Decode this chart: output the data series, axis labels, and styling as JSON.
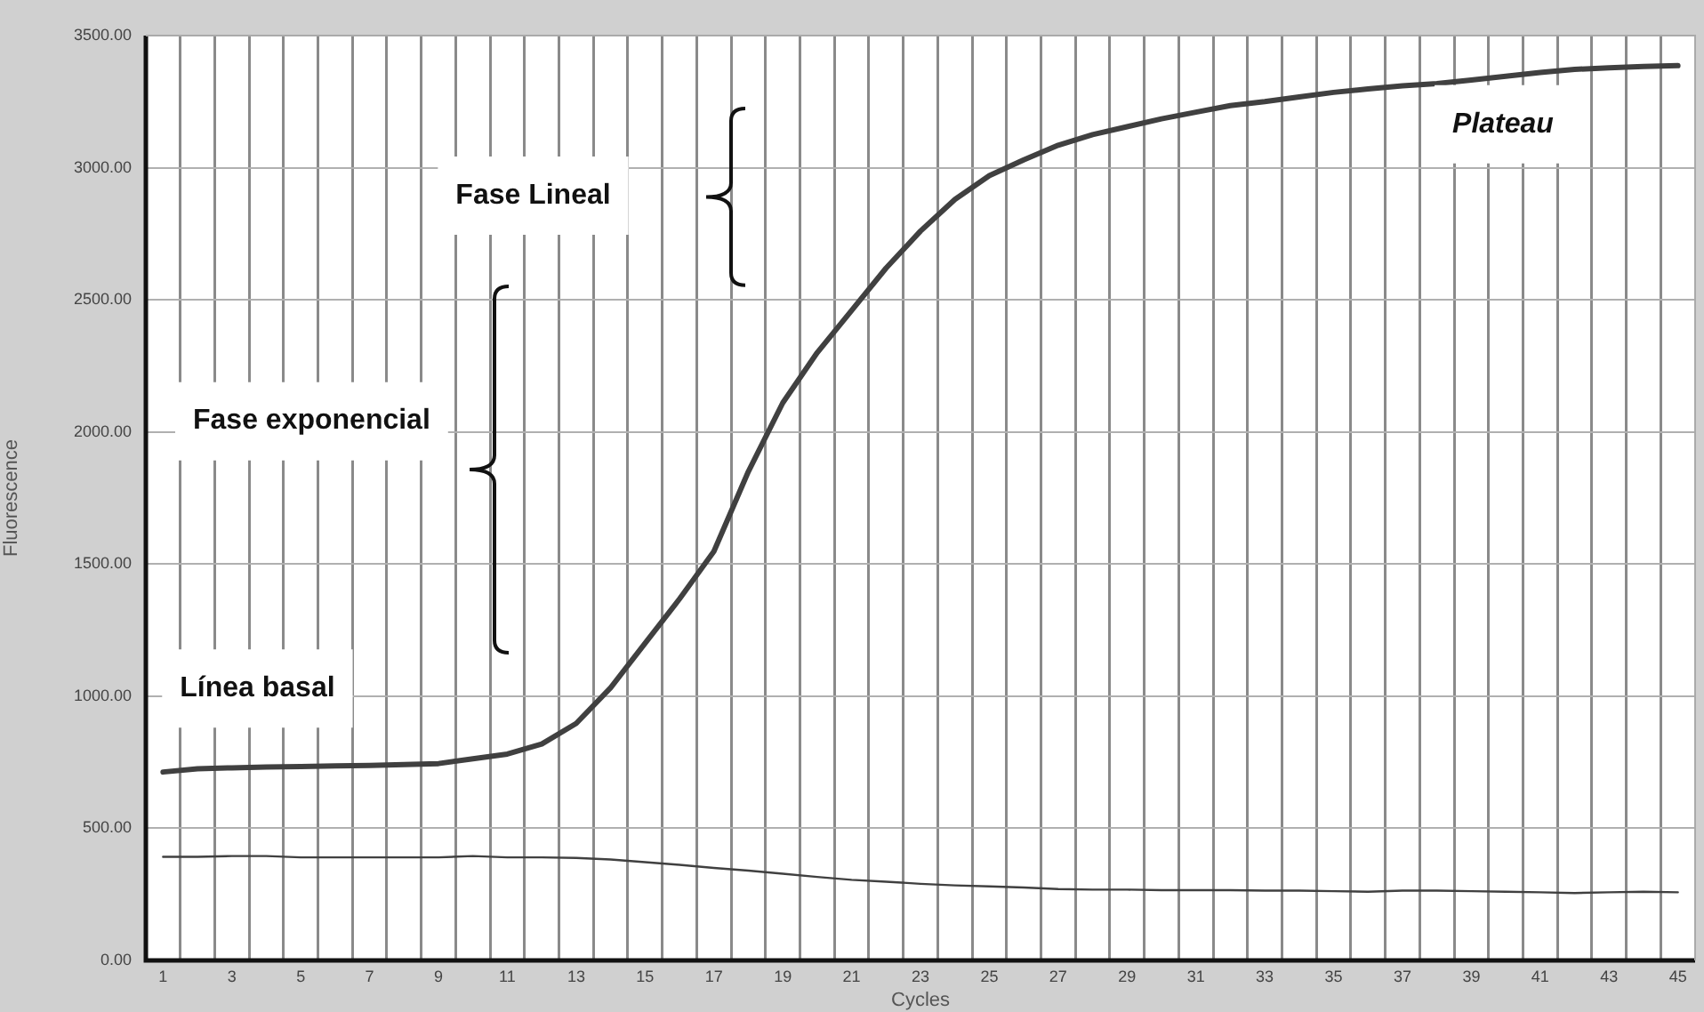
{
  "chart_data": {
    "type": "line",
    "xlabel": "Cycles",
    "ylabel": "Fluorescence",
    "x": [
      1,
      2,
      3,
      4,
      5,
      6,
      7,
      8,
      9,
      10,
      11,
      12,
      13,
      14,
      15,
      16,
      17,
      18,
      19,
      20,
      21,
      22,
      23,
      24,
      25,
      26,
      27,
      28,
      29,
      30,
      31,
      32,
      33,
      34,
      35,
      36,
      37,
      38,
      39,
      40,
      41,
      42,
      43,
      44,
      45
    ],
    "series": [
      {
        "color": "#404040",
        "values": [
          713,
          725,
          729,
          732,
          734,
          736,
          738,
          741,
          745,
          763,
          781,
          819,
          897,
          1032,
          1200,
          1368,
          1548,
          1850,
          2110,
          2300,
          2460,
          2620,
          2760,
          2880,
          2970,
          3030,
          3085,
          3125,
          3155,
          3185,
          3210,
          3235,
          3250,
          3268,
          3285,
          3298,
          3310,
          3318,
          3332,
          3346,
          3360,
          3372,
          3378,
          3383,
          3386
        ]
      },
      {
        "color": "#404040",
        "values": [
          392,
          392,
          395,
          395,
          390,
          390,
          390,
          390,
          390,
          395,
          390,
          390,
          388,
          382,
          372,
          362,
          350,
          340,
          328,
          316,
          305,
          298,
          290,
          284,
          280,
          276,
          270,
          268,
          268,
          266,
          266,
          266,
          264,
          264,
          262,
          260,
          264,
          264,
          262,
          260,
          258,
          255,
          258,
          260,
          258
        ]
      }
    ],
    "xlim": [
      0.5,
      45.5
    ],
    "xticks": [
      1,
      {
        "value": 1.5,
        "label": null
      },
      {
        "value": 2.5,
        "label": null
      },
      3,
      {
        "value": 3.5,
        "label": null
      },
      {
        "value": 4.5,
        "label": null
      },
      5,
      {
        "value": 5.5,
        "label": null
      },
      {
        "value": 6.5,
        "label": null
      },
      7,
      {
        "value": 7.5,
        "label": null
      },
      {
        "value": 8.5,
        "label": null
      },
      9,
      {
        "value": 9.5,
        "label": null
      },
      {
        "value": 10.5,
        "label": null
      },
      11,
      {
        "value": 11.5,
        "label": null
      },
      {
        "value": 12.5,
        "label": null
      },
      13,
      {
        "value": 13.5,
        "label": null
      },
      {
        "value": 14.5,
        "label": null
      },
      15,
      {
        "value": 15.5,
        "label": null
      },
      {
        "value": 16.5,
        "label": null
      },
      17,
      {
        "value": 17.5,
        "label": null
      },
      {
        "value": 18.5,
        "label": null
      },
      19,
      {
        "value": 19.5,
        "label": null
      },
      {
        "value": 20.5,
        "label": null
      },
      21,
      {
        "value": 21.5,
        "label": null
      },
      {
        "value": 22.5,
        "label": null
      },
      23,
      {
        "value": 23.5,
        "label": null
      },
      {
        "value": 24.5,
        "label": null
      },
      25,
      {
        "value": 25.5,
        "label": null
      },
      {
        "value": 26.5,
        "label": null
      },
      27,
      {
        "value": 27.5,
        "label": null
      },
      {
        "value": 28.5,
        "label": null
      },
      29,
      {
        "value": 29.5,
        "label": null
      },
      {
        "value": 30.5,
        "label": null
      },
      31,
      {
        "value": 31.5,
        "label": null
      },
      {
        "value": 32.5,
        "label": null
      },
      33,
      {
        "value": 33.5,
        "label": null
      },
      {
        "value": 34.5,
        "label": null
      },
      35,
      {
        "value": 35.5,
        "label": null
      },
      {
        "value": 36.5,
        "label": null
      },
      37,
      {
        "value": 37.5,
        "label": null
      },
      {
        "value": 38.5,
        "label": null
      },
      39,
      {
        "value": 39.5,
        "label": null
      },
      {
        "value": 40.5,
        "label": null
      },
      41,
      {
        "value": 41.5,
        "label": null
      },
      {
        "value": 42.5,
        "label": null
      },
      43,
      {
        "value": 43.5,
        "label": null
      },
      {
        "value": 44.5,
        "label": null
      },
      45
    ],
    "ylim": [
      0,
      3500
    ],
    "yticks": [
      {
        "value": 0,
        "label": "0.00"
      },
      {
        "value": 500,
        "label": "500.00"
      },
      {
        "value": 1000,
        "label": "1000.00"
      },
      {
        "value": 1500,
        "label": "1500.00"
      },
      {
        "value": 2000,
        "label": "2000.00"
      },
      {
        "value": 2500,
        "label": "2500.00"
      },
      {
        "value": 3000,
        "label": "3000.00"
      },
      {
        "value": 3500,
        "label": "3500.00"
      }
    ],
    "grid": true,
    "legend": false,
    "marker": "none",
    "line_style": "solid",
    "annotations": [
      "Fase Lineal",
      "Fase exponencial",
      "Plateau",
      "Línea basal"
    ]
  }
}
